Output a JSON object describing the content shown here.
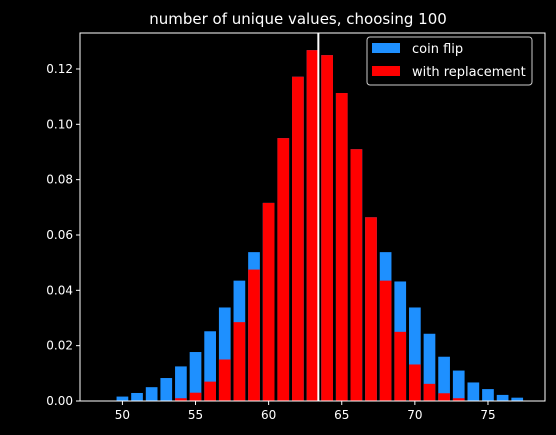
{
  "chart_data": {
    "type": "bar",
    "title": "number of unique values, choosing 100",
    "xlabel": "",
    "ylabel": "",
    "xlim": [
      47.1,
      78.9
    ],
    "ylim": [
      0,
      0.133
    ],
    "xticks": [
      50,
      55,
      60,
      65,
      70,
      75
    ],
    "yticks": [
      0.0,
      0.02,
      0.04,
      0.06,
      0.08,
      0.1,
      0.12
    ],
    "xtick_labels": [
      "50",
      "55",
      "60",
      "65",
      "70",
      "75"
    ],
    "ytick_labels": [
      "0.00",
      "0.02",
      "0.04",
      "0.06",
      "0.08",
      "0.10",
      "0.12"
    ],
    "grid": false,
    "legend_position": "top-right",
    "bar_width": 0.8,
    "x": [
      50,
      51,
      52,
      53,
      54,
      55,
      56,
      57,
      58,
      59,
      60,
      61,
      62,
      63,
      64,
      65,
      66,
      67,
      68,
      69,
      70,
      71,
      72,
      73,
      74,
      75,
      76,
      77
    ],
    "series": [
      {
        "name": "coin flip",
        "color": "#1e90ff",
        "values": [
          0.0016,
          0.0029,
          0.005,
          0.0083,
          0.0125,
          0.0177,
          0.0252,
          0.0338,
          0.0435,
          0.0538,
          0.0716,
          0.095,
          0.1172,
          0.1268,
          0.125,
          0.1113,
          0.091,
          0.0664,
          0.0538,
          0.0432,
          0.0338,
          0.0243,
          0.016,
          0.011,
          0.0067,
          0.0043,
          0.0022,
          0.0012
        ]
      },
      {
        "name": "with replacement",
        "color": "#ff0000",
        "values": [
          0.0,
          0.0,
          0.0,
          0.0,
          0.001,
          0.003,
          0.007,
          0.015,
          0.0285,
          0.0475,
          0.0716,
          0.095,
          0.1172,
          0.1268,
          0.125,
          0.1113,
          0.091,
          0.0664,
          0.0435,
          0.025,
          0.0132,
          0.0062,
          0.0028,
          0.001,
          0.0,
          0.0,
          0.0,
          0.0
        ]
      }
    ],
    "vertical_line": {
      "x": 63.4,
      "color": "#ffffff"
    }
  }
}
